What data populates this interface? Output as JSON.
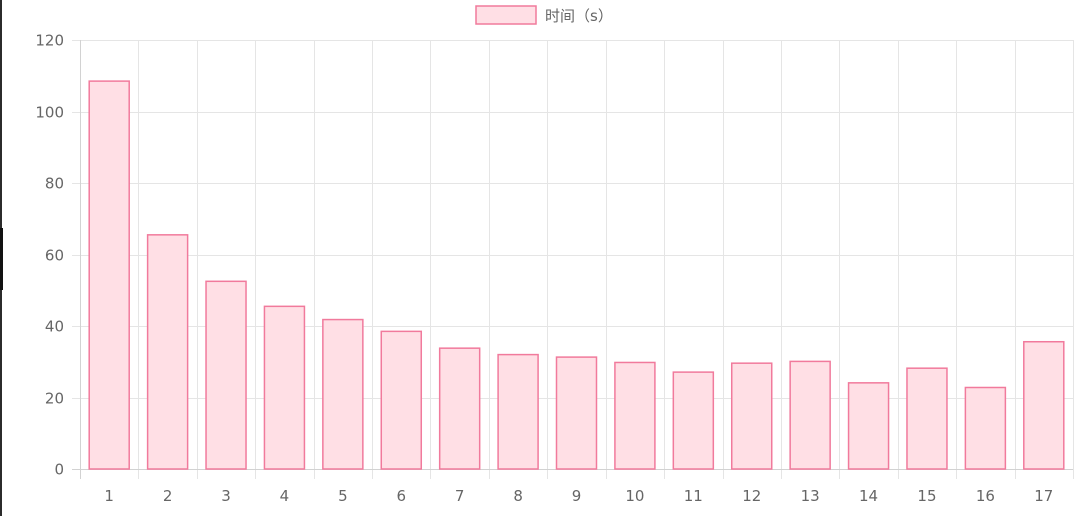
{
  "chart_data": {
    "type": "bar",
    "categories": [
      "1",
      "2",
      "3",
      "4",
      "5",
      "6",
      "7",
      "8",
      "9",
      "10",
      "11",
      "12",
      "13",
      "14",
      "15",
      "16",
      "17"
    ],
    "series": [
      {
        "name": "时间（s）",
        "values": [
          108.5,
          65.5,
          52.5,
          45.5,
          41.8,
          38.5,
          33.8,
          32.0,
          31.3,
          29.8,
          27.1,
          29.6,
          30.1,
          24.1,
          28.2,
          22.8,
          35.6
        ]
      }
    ],
    "xlabel": "",
    "ylabel": "",
    "ylim": [
      0,
      120
    ],
    "yticks": [
      "0",
      "20",
      "40",
      "60",
      "80",
      "100",
      "120"
    ],
    "grid": true,
    "legend_position": "top-center",
    "colors": {
      "bar_fill": "#ffdfe5",
      "bar_stroke": "#f17a9c",
      "grid": "#e5e5e5",
      "tick_text": "#666666"
    }
  }
}
